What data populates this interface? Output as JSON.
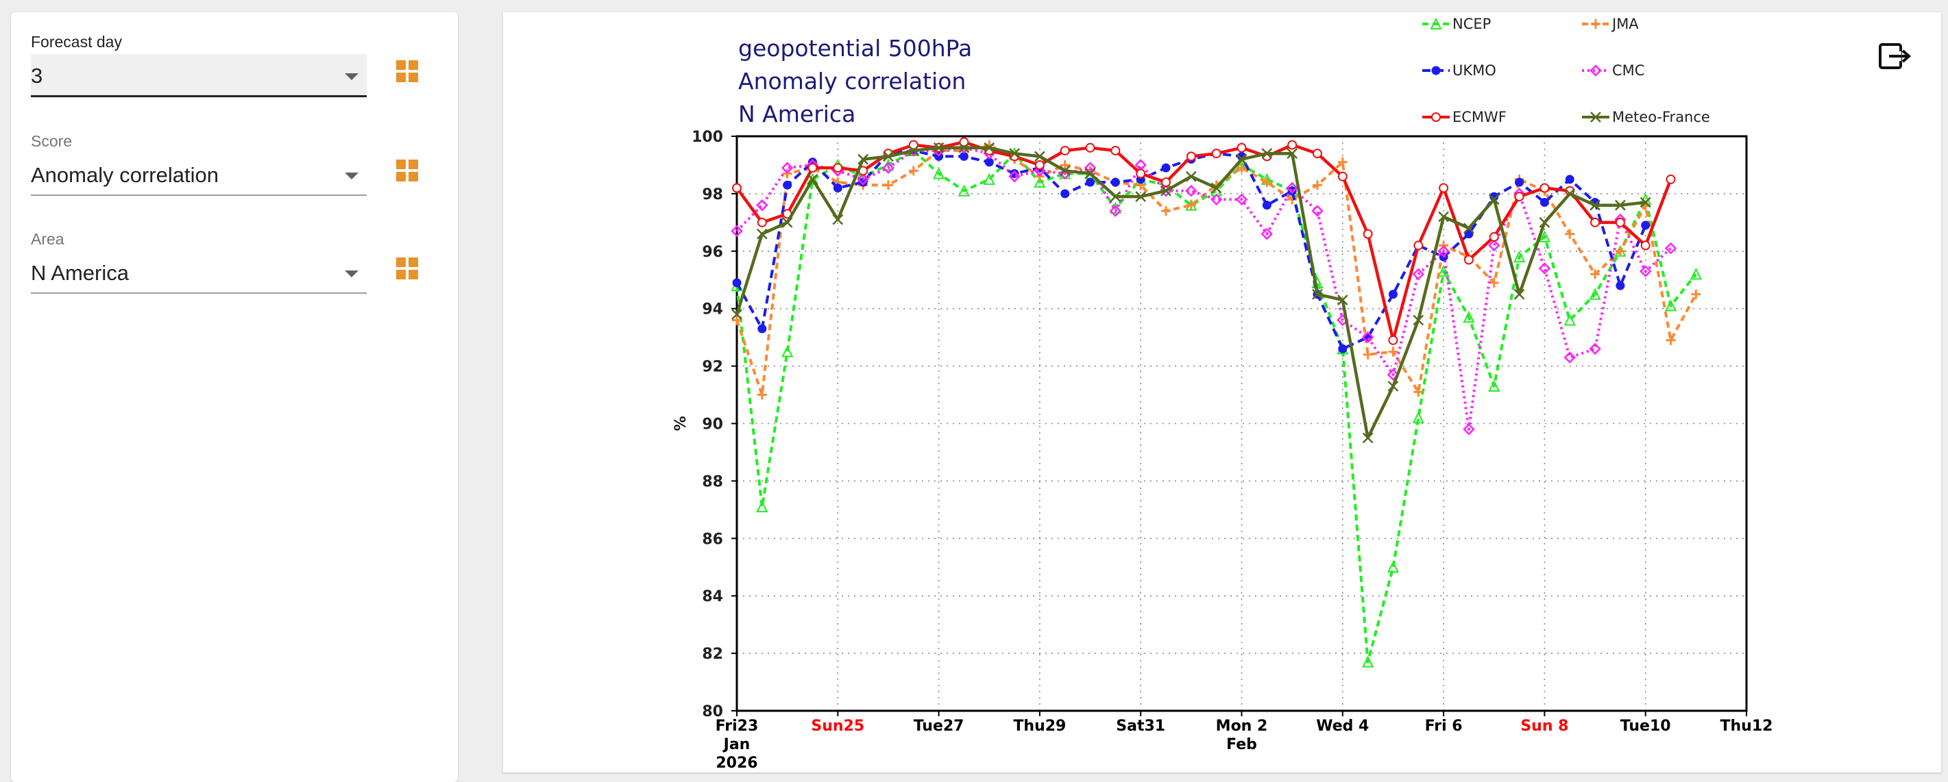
{
  "controls": {
    "forecast_day": {
      "label": "Forecast day",
      "value": "3"
    },
    "score": {
      "label": "Score",
      "value": "Anomaly correlation"
    },
    "area": {
      "label": "Area",
      "value": "N America"
    }
  },
  "icons": {
    "grid": "grid-view-icon",
    "export": "export-icon"
  },
  "chart_data": {
    "type": "line",
    "title_lines": [
      "geopotential 500hPa",
      "Anomaly correlation",
      "N America"
    ],
    "xlabel": "",
    "ylabel": "%",
    "ylim": [
      80,
      100
    ],
    "yticks": [
      80,
      82,
      84,
      86,
      88,
      90,
      92,
      94,
      96,
      98,
      100
    ],
    "grid": true,
    "legend_position": "top-right",
    "x_start": "2026-01-23",
    "x_days": 20,
    "xticks": [
      {
        "day": 0,
        "lines": [
          "Fri23",
          "Jan",
          "2026"
        ],
        "color": "#000000"
      },
      {
        "day": 2,
        "lines": [
          "Sun25"
        ],
        "color": "#ff0000"
      },
      {
        "day": 4,
        "lines": [
          "Tue27"
        ],
        "color": "#000000"
      },
      {
        "day": 6,
        "lines": [
          "Thu29"
        ],
        "color": "#000000"
      },
      {
        "day": 8,
        "lines": [
          "Sat31"
        ],
        "color": "#000000"
      },
      {
        "day": 10,
        "lines": [
          "Mon 2",
          "Feb"
        ],
        "color": "#000000"
      },
      {
        "day": 12,
        "lines": [
          "Wed 4"
        ],
        "color": "#000000"
      },
      {
        "day": 14,
        "lines": [
          "Fri 6"
        ],
        "color": "#000000"
      },
      {
        "day": 16,
        "lines": [
          "Sun 8"
        ],
        "color": "#ff0000"
      },
      {
        "day": 18,
        "lines": [
          "Tue10"
        ],
        "color": "#000000"
      },
      {
        "day": 20,
        "lines": [
          "Thu12"
        ],
        "color": "#000000"
      }
    ],
    "series": [
      {
        "name": "NCEP",
        "color": "#22ee22",
        "dash": "9,6",
        "marker": "triangle",
        "x": [
          0,
          0.5,
          1,
          1.5,
          2,
          2.5,
          3,
          3.5,
          4,
          4.5,
          5,
          5.5,
          6,
          6.5,
          7,
          7.5,
          8,
          8.5,
          9,
          9.5,
          10,
          10.5,
          11,
          11.5,
          12,
          12.5,
          13,
          13.5,
          14,
          14.5,
          15,
          15.5,
          16,
          16.5,
          17,
          17.5,
          18,
          18.5,
          19,
          19.5,
          20
        ],
        "values": [
          94.8,
          87.1,
          92.5,
          98.5,
          99.0,
          98.6,
          99.0,
          99.5,
          98.7,
          98.1,
          98.5,
          99.4,
          98.4,
          98.7,
          98.7,
          97.5,
          98.5,
          98.3,
          97.6,
          98.1,
          99.0,
          98.5,
          98.1,
          94.9,
          92.6,
          81.7,
          85.0,
          90.2,
          95.3,
          93.7,
          91.3,
          95.8,
          96.5,
          93.6,
          94.5,
          96.0,
          97.8,
          94.1,
          95.2,
          null,
          null
        ]
      },
      {
        "name": "JMA",
        "color": "#ff8833",
        "dash": "9,6",
        "marker": "plus",
        "x": [
          0,
          0.5,
          1,
          1.5,
          2,
          2.5,
          3,
          3.5,
          4,
          4.5,
          5,
          5.5,
          6,
          6.5,
          7,
          7.5,
          8,
          8.5,
          9,
          9.5,
          10,
          10.5,
          11,
          11.5,
          12,
          12.5,
          13,
          13.5,
          14,
          14.5,
          15,
          15.5,
          16,
          16.5,
          17,
          17.5,
          18,
          18.5,
          19,
          19.5,
          20
        ],
        "values": [
          93.6,
          91.0,
          98.7,
          98.9,
          98.4,
          98.3,
          98.3,
          98.8,
          99.5,
          99.5,
          99.7,
          99.2,
          98.6,
          99.0,
          98.8,
          98.4,
          98.3,
          97.4,
          97.6,
          98.3,
          98.9,
          98.4,
          97.8,
          98.3,
          99.1,
          92.4,
          92.5,
          91.1,
          96.2,
          95.8,
          94.9,
          98.5,
          98.1,
          96.6,
          95.2,
          96.0,
          97.6,
          92.9,
          94.5,
          null,
          null
        ]
      },
      {
        "name": "UKMO",
        "color": "#1c1cee",
        "dash": "12,7",
        "marker": "circle",
        "x": [
          0,
          0.5,
          1,
          1.5,
          2,
          2.5,
          3,
          3.5,
          4,
          4.5,
          5,
          5.5,
          6,
          6.5,
          7,
          7.5,
          8,
          8.5,
          9,
          9.5,
          10,
          10.5,
          11,
          11.5,
          12,
          12.5,
          13,
          13.5,
          14,
          14.5,
          15,
          15.5,
          16,
          16.5,
          17,
          17.5,
          18,
          18.5,
          19,
          19.5,
          20
        ],
        "values": [
          94.9,
          93.3,
          98.3,
          99.1,
          98.2,
          98.4,
          99.4,
          99.5,
          99.3,
          99.3,
          99.1,
          98.7,
          98.9,
          98.0,
          98.4,
          98.4,
          98.5,
          98.9,
          99.2,
          99.4,
          99.3,
          97.6,
          98.1,
          94.5,
          92.6,
          93.0,
          94.5,
          96.2,
          95.8,
          96.6,
          97.9,
          98.4,
          97.7,
          98.5,
          97.7,
          94.8,
          96.9,
          null,
          null,
          null,
          null
        ]
      },
      {
        "name": "CMC",
        "color": "#ff22ff",
        "dash": "3,5",
        "marker": "diamond",
        "x": [
          0,
          0.5,
          1,
          1.5,
          2,
          2.5,
          3,
          3.5,
          4,
          4.5,
          5,
          5.5,
          6,
          6.5,
          7,
          7.5,
          8,
          8.5,
          9,
          9.5,
          10,
          10.5,
          11,
          11.5,
          12,
          12.5,
          13,
          13.5,
          14,
          14.5,
          15,
          15.5,
          16,
          16.5,
          17,
          17.5,
          18,
          18.5,
          19,
          19.5,
          20
        ],
        "values": [
          96.7,
          97.6,
          98.9,
          99.0,
          98.8,
          98.5,
          98.9,
          99.5,
          99.5,
          99.6,
          99.4,
          98.6,
          98.8,
          98.7,
          98.9,
          97.4,
          99.0,
          98.1,
          98.1,
          97.8,
          97.8,
          96.6,
          98.2,
          97.4,
          93.6,
          93.0,
          91.7,
          95.2,
          96.0,
          89.8,
          96.2,
          98.0,
          95.4,
          92.3,
          92.6,
          97.1,
          95.3,
          96.1,
          null,
          null,
          null
        ]
      },
      {
        "name": "ECMWF",
        "color": "#ee1111",
        "dash": "",
        "marker": "circle-open",
        "x": [
          0,
          0.5,
          1,
          1.5,
          2,
          2.5,
          3,
          3.5,
          4,
          4.5,
          5,
          5.5,
          6,
          6.5,
          7,
          7.5,
          8,
          8.5,
          9,
          9.5,
          10,
          10.5,
          11,
          11.5,
          12,
          12.5,
          13,
          13.5,
          14,
          14.5,
          15,
          15.5,
          16,
          16.5,
          17,
          17.5,
          18,
          18.5,
          19,
          19.5,
          20
        ],
        "values": [
          98.2,
          97.0,
          97.3,
          98.9,
          98.9,
          98.8,
          99.4,
          99.7,
          99.6,
          99.8,
          99.5,
          99.3,
          99.0,
          99.5,
          99.6,
          99.5,
          98.7,
          98.4,
          99.3,
          99.4,
          99.6,
          99.3,
          99.7,
          99.4,
          98.6,
          96.6,
          92.9,
          96.2,
          98.2,
          95.7,
          96.5,
          97.9,
          98.2,
          98.1,
          97.0,
          97.0,
          96.2,
          98.5,
          null,
          null,
          null
        ]
      },
      {
        "name": "Meteo-France",
        "color": "#556b1e",
        "dash": "",
        "marker": "x",
        "x": [
          0,
          0.5,
          1,
          1.5,
          2,
          2.5,
          3,
          3.5,
          4,
          4.5,
          5,
          5.5,
          6,
          6.5,
          7,
          7.5,
          8,
          8.5,
          9,
          9.5,
          10,
          10.5,
          11,
          11.5,
          12,
          12.5,
          13,
          13.5,
          14,
          14.5,
          15,
          15.5,
          16,
          16.5,
          17,
          17.5,
          18,
          18.5,
          19,
          19.5,
          20
        ],
        "values": [
          93.8,
          96.6,
          97.0,
          98.5,
          97.1,
          99.2,
          99.3,
          99.5,
          99.6,
          99.6,
          99.6,
          99.4,
          99.3,
          98.8,
          98.7,
          97.9,
          97.9,
          98.1,
          98.6,
          98.2,
          99.2,
          99.4,
          99.4,
          94.5,
          94.3,
          89.5,
          91.3,
          93.6,
          97.2,
          96.8,
          97.8,
          94.5,
          97.0,
          98.0,
          97.6,
          97.6,
          97.7,
          null,
          null,
          null,
          null
        ]
      }
    ]
  }
}
